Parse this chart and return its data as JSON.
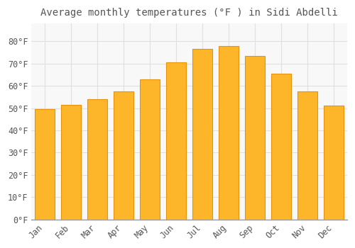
{
  "title": "Average monthly temperatures (°F ) in Sidi Abdelli",
  "months": [
    "Jan",
    "Feb",
    "Mar",
    "Apr",
    "May",
    "Jun",
    "Jul",
    "Aug",
    "Sep",
    "Oct",
    "Nov",
    "Dec"
  ],
  "values": [
    49.5,
    51.5,
    54.0,
    57.5,
    63.0,
    70.5,
    76.5,
    78.0,
    73.5,
    65.5,
    57.5,
    51.0
  ],
  "bar_color": "#FDB52A",
  "bar_edge_color": "#E8920A",
  "background_color": "#FFFFFF",
  "plot_bg_color": "#F8F8F8",
  "grid_color": "#E0E0E0",
  "text_color": "#555555",
  "ylim": [
    0,
    88
  ],
  "yticks": [
    0,
    10,
    20,
    30,
    40,
    50,
    60,
    70,
    80
  ],
  "title_fontsize": 10,
  "tick_fontsize": 8.5,
  "bar_width": 0.75
}
